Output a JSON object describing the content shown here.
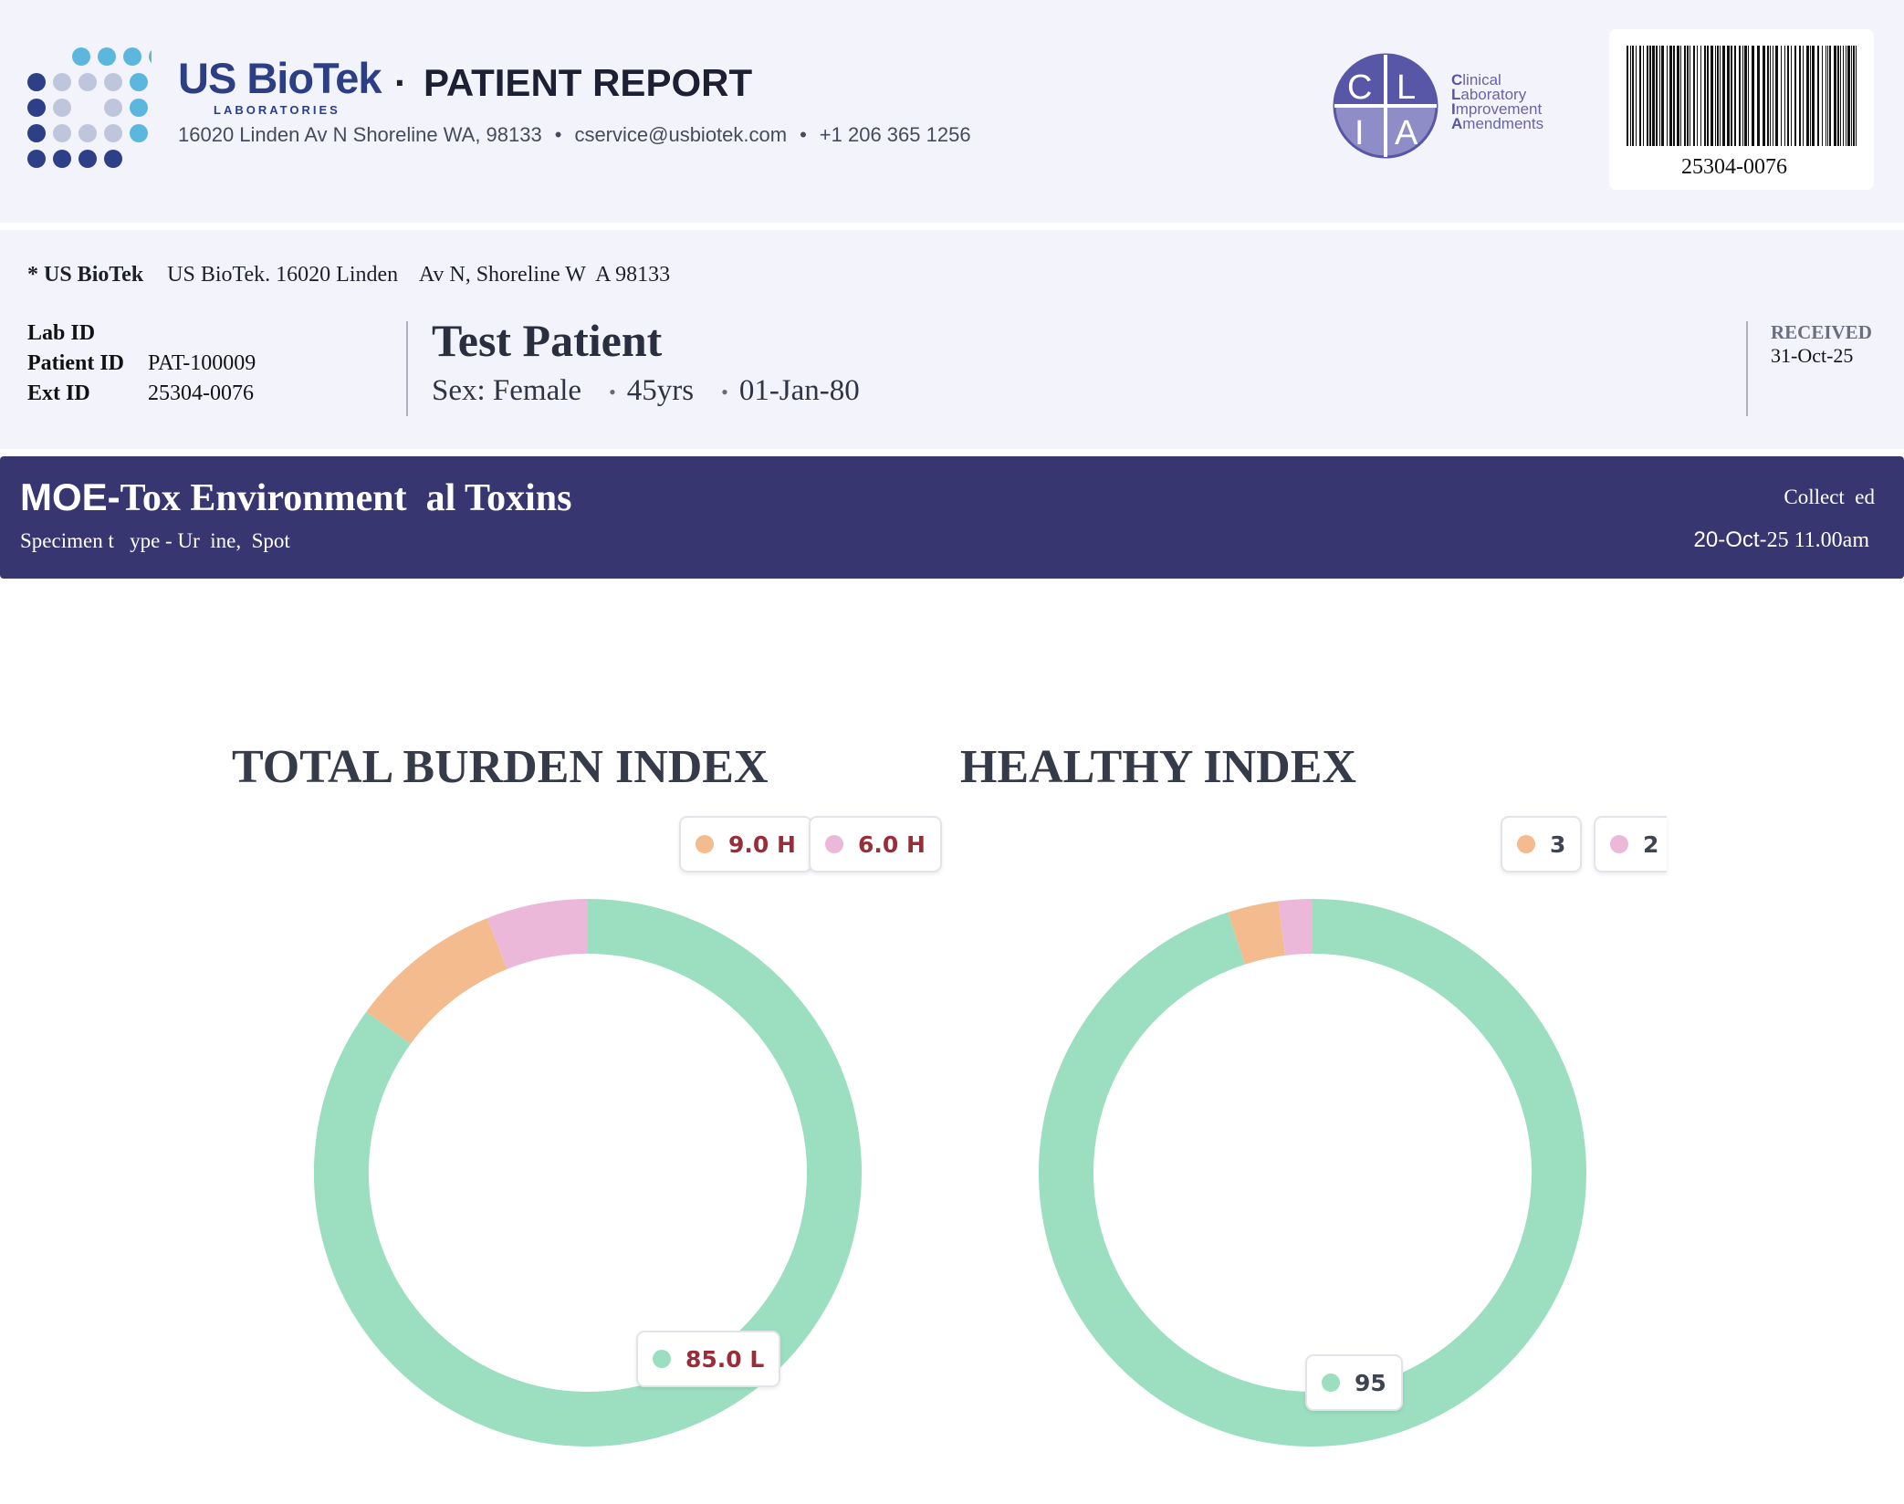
{
  "header": {
    "brand": "US BioTek",
    "brand_sub": "LABORATORIES",
    "report_title": "PATIENT REPORT",
    "address": "16020 Linden Av N Shoreline WA, 98133",
    "email": "cservice@usbiotek.com",
    "phone": "+1 206 365 1256",
    "clia": {
      "logo_letters": "CLIA",
      "lines": [
        {
          "initial": "C",
          "rest": "linical"
        },
        {
          "initial": "L",
          "rest": "aboratory"
        },
        {
          "initial": "I",
          "rest": "mprovement"
        },
        {
          "initial": "A",
          "rest": "mendments"
        }
      ]
    },
    "barcode_number": "25304-0076"
  },
  "lab": {
    "name": "* US BioTek",
    "address": "US BioTek. 16020 Linden    Av N, Shoreline W  A 98133"
  },
  "patient": {
    "fields": [
      {
        "label": "Lab ID",
        "value": ""
      },
      {
        "label": "Patient ID",
        "value": "PAT-100009"
      },
      {
        "label": "Ext ID",
        "value": "25304-0076"
      }
    ],
    "name": "Test Patient",
    "sex": "Sex: Female",
    "age": "45yrs",
    "dob": "01-Jan-80",
    "received_label": "RECEIVED",
    "received_date": "31-Oct-25"
  },
  "test": {
    "name_prefix": "MOE-",
    "name_rest": "Tox Environment  al Toxins",
    "specimen": "Specimen t   ype - Ur  ine,  Spot",
    "collected_label": "Collect  ed",
    "collected_date_a": "20-Oct-",
    "collected_date_b": "25 11.00am"
  },
  "colors": {
    "green": "#9bdec0",
    "orange": "#f3bb8e",
    "pink": "#ebb8d9"
  },
  "chart_data": [
    {
      "type": "pie",
      "title": "TOTAL BURDEN INDEX",
      "slices": [
        {
          "label": "85.0 L",
          "value": 85.0,
          "color": "#9bdec0"
        },
        {
          "label": "9.0 H",
          "value": 9.0,
          "color": "#f3bb8e"
        },
        {
          "label": "6.0 H",
          "value": 6.0,
          "color": "#ebb8d9"
        }
      ]
    },
    {
      "type": "pie",
      "title": "HEALTHY INDEX",
      "slices": [
        {
          "label": "95",
          "value": 95,
          "color": "#9bdec0"
        },
        {
          "label": "3",
          "value": 3,
          "color": "#f3bb8e"
        },
        {
          "label": "2",
          "value": 2,
          "color": "#ebb8d9"
        }
      ]
    }
  ]
}
